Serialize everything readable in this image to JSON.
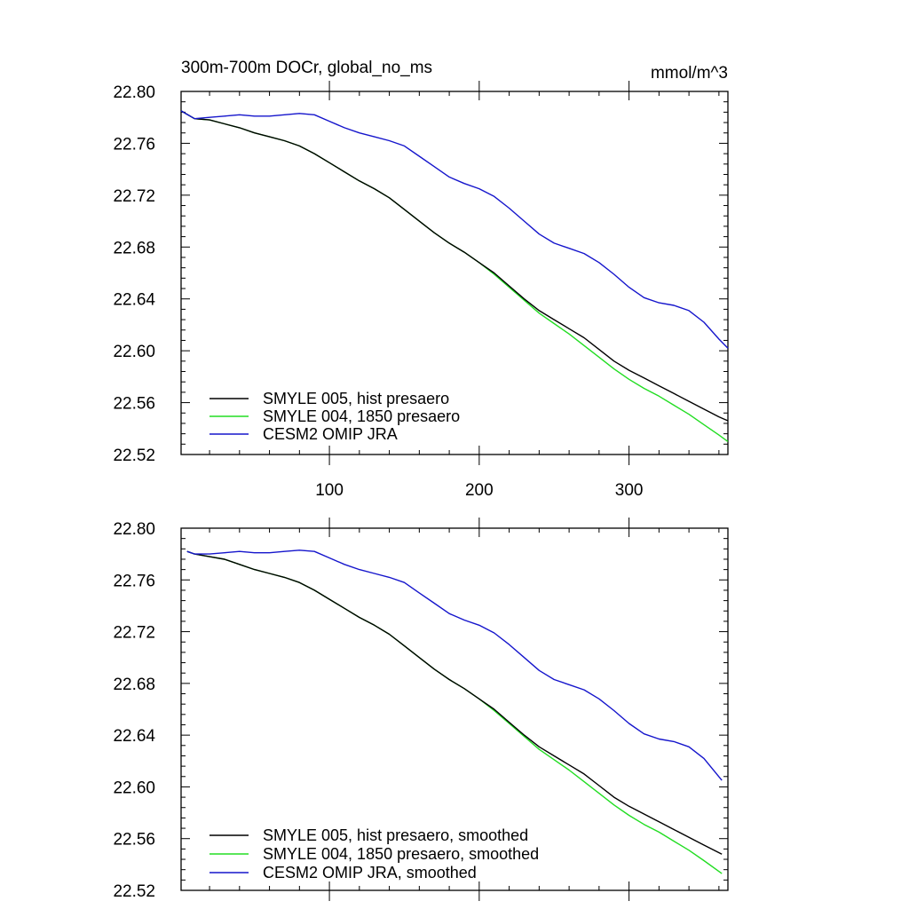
{
  "chart_data": [
    {
      "type": "line",
      "title": "300m-700m DOCr, global_no_ms",
      "units": "mmol/m^3",
      "xlabel": "",
      "ylabel": "",
      "xlim": [
        1,
        366
      ],
      "ylim": [
        22.52,
        22.8
      ],
      "xtick_labels": [
        "100",
        "200",
        "300"
      ],
      "xticks": [
        100,
        200,
        300
      ],
      "yticks": [
        22.52,
        22.56,
        22.6,
        22.64,
        22.68,
        22.72,
        22.76,
        22.8
      ],
      "ytick_labels": [
        "22.52",
        "22.56",
        "22.60",
        "22.64",
        "22.68",
        "22.72",
        "22.76",
        "22.80"
      ],
      "legend_position": "bottom-left",
      "series": [
        {
          "name": "SMYLE 005, hist presaero",
          "color": "#000000",
          "x": [
            1,
            10,
            20,
            30,
            40,
            50,
            60,
            70,
            80,
            90,
            100,
            110,
            120,
            130,
            140,
            150,
            160,
            170,
            180,
            190,
            200,
            210,
            220,
            230,
            240,
            250,
            260,
            270,
            280,
            290,
            300,
            310,
            320,
            330,
            340,
            350,
            360,
            366
          ],
          "y": [
            22.785,
            22.779,
            22.778,
            22.775,
            22.772,
            22.768,
            22.765,
            22.762,
            22.758,
            22.752,
            22.745,
            22.738,
            22.731,
            22.725,
            22.718,
            22.709,
            22.7,
            22.691,
            22.683,
            22.676,
            22.668,
            22.66,
            22.65,
            22.64,
            22.631,
            22.624,
            22.617,
            22.61,
            22.601,
            22.592,
            22.585,
            22.579,
            22.573,
            22.567,
            22.561,
            22.555,
            22.549,
            22.546
          ]
        },
        {
          "name": "SMYLE 004, 1850 presaero",
          "color": "#22dd22",
          "x": [
            1,
            10,
            20,
            30,
            40,
            50,
            60,
            70,
            80,
            90,
            100,
            110,
            120,
            130,
            140,
            150,
            160,
            170,
            180,
            190,
            200,
            210,
            220,
            230,
            240,
            250,
            260,
            270,
            280,
            290,
            300,
            310,
            320,
            330,
            340,
            350,
            360,
            366
          ],
          "y": [
            22.785,
            22.779,
            22.778,
            22.775,
            22.772,
            22.768,
            22.765,
            22.762,
            22.758,
            22.752,
            22.745,
            22.738,
            22.731,
            22.725,
            22.718,
            22.709,
            22.7,
            22.691,
            22.683,
            22.676,
            22.668,
            22.659,
            22.649,
            22.639,
            22.629,
            22.621,
            22.613,
            22.604,
            22.595,
            22.586,
            22.578,
            22.571,
            22.565,
            22.558,
            22.551,
            22.543,
            22.535,
            22.53
          ]
        },
        {
          "name": "CESM2 OMIP JRA",
          "color": "#1515cc",
          "x": [
            1,
            10,
            20,
            30,
            40,
            50,
            60,
            70,
            80,
            90,
            100,
            110,
            120,
            130,
            140,
            150,
            160,
            170,
            180,
            190,
            200,
            210,
            220,
            230,
            240,
            250,
            260,
            270,
            280,
            290,
            300,
            310,
            320,
            330,
            340,
            350,
            360,
            366
          ],
          "y": [
            22.785,
            22.779,
            22.78,
            22.781,
            22.782,
            22.781,
            22.781,
            22.782,
            22.783,
            22.782,
            22.777,
            22.772,
            22.768,
            22.765,
            22.762,
            22.758,
            22.75,
            22.742,
            22.734,
            22.729,
            22.725,
            22.719,
            22.71,
            22.7,
            22.69,
            22.683,
            22.679,
            22.675,
            22.668,
            22.659,
            22.649,
            22.641,
            22.637,
            22.635,
            22.631,
            22.622,
            22.609,
            22.602
          ]
        }
      ]
    },
    {
      "type": "line",
      "title": "",
      "xlabel": "",
      "ylabel": "",
      "xlim": [
        1,
        366
      ],
      "ylim": [
        22.52,
        22.8
      ],
      "xticks": [
        100,
        200,
        300
      ],
      "yticks": [
        22.52,
        22.56,
        22.6,
        22.64,
        22.68,
        22.72,
        22.76,
        22.8
      ],
      "ytick_labels": [
        "22.52",
        "22.56",
        "22.60",
        "22.64",
        "22.68",
        "22.72",
        "22.76",
        "22.80"
      ],
      "legend_position": "bottom-left",
      "series": [
        {
          "name": "SMYLE 005, hist presaero, smoothed",
          "color": "#000000",
          "x": [
            5,
            10,
            20,
            30,
            40,
            50,
            60,
            70,
            80,
            90,
            100,
            110,
            120,
            130,
            140,
            150,
            160,
            170,
            180,
            190,
            200,
            210,
            220,
            230,
            240,
            250,
            260,
            270,
            280,
            290,
            300,
            310,
            320,
            330,
            340,
            350,
            362
          ],
          "y": [
            22.782,
            22.78,
            22.778,
            22.776,
            22.772,
            22.768,
            22.765,
            22.762,
            22.758,
            22.752,
            22.745,
            22.738,
            22.731,
            22.725,
            22.718,
            22.709,
            22.7,
            22.691,
            22.683,
            22.676,
            22.668,
            22.66,
            22.65,
            22.64,
            22.631,
            22.624,
            22.617,
            22.61,
            22.601,
            22.592,
            22.585,
            22.579,
            22.573,
            22.567,
            22.561,
            22.555,
            22.548
          ]
        },
        {
          "name": "SMYLE 004, 1850 presaero, smoothed",
          "color": "#22dd22",
          "x": [
            5,
            10,
            20,
            30,
            40,
            50,
            60,
            70,
            80,
            90,
            100,
            110,
            120,
            130,
            140,
            150,
            160,
            170,
            180,
            190,
            200,
            210,
            220,
            230,
            240,
            250,
            260,
            270,
            280,
            290,
            300,
            310,
            320,
            330,
            340,
            350,
            362
          ],
          "y": [
            22.782,
            22.78,
            22.778,
            22.776,
            22.772,
            22.768,
            22.765,
            22.762,
            22.758,
            22.752,
            22.745,
            22.738,
            22.731,
            22.725,
            22.718,
            22.709,
            22.7,
            22.691,
            22.683,
            22.676,
            22.668,
            22.659,
            22.649,
            22.639,
            22.629,
            22.621,
            22.613,
            22.604,
            22.595,
            22.586,
            22.578,
            22.571,
            22.565,
            22.558,
            22.551,
            22.543,
            22.533
          ]
        },
        {
          "name": "CESM2 OMIP JRA, smoothed",
          "color": "#1515cc",
          "x": [
            5,
            10,
            20,
            30,
            40,
            50,
            60,
            70,
            80,
            90,
            100,
            110,
            120,
            130,
            140,
            150,
            160,
            170,
            180,
            190,
            200,
            210,
            220,
            230,
            240,
            250,
            260,
            270,
            280,
            290,
            300,
            310,
            320,
            330,
            340,
            350,
            362
          ],
          "y": [
            22.782,
            22.78,
            22.78,
            22.781,
            22.782,
            22.781,
            22.781,
            22.782,
            22.783,
            22.782,
            22.777,
            22.772,
            22.768,
            22.765,
            22.762,
            22.758,
            22.75,
            22.742,
            22.734,
            22.729,
            22.725,
            22.719,
            22.71,
            22.7,
            22.69,
            22.683,
            22.679,
            22.675,
            22.668,
            22.659,
            22.649,
            22.641,
            22.637,
            22.635,
            22.631,
            22.622,
            22.605
          ]
        }
      ]
    }
  ]
}
